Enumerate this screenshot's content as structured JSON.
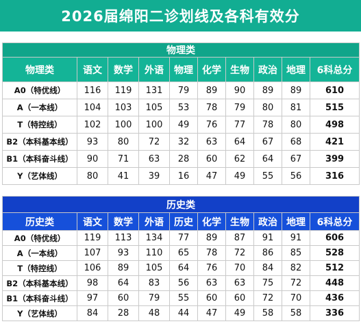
{
  "title": "2026届绵阳二诊划线及各科有效分",
  "physics": {
    "section": "物理类",
    "headers": [
      "物理类",
      "语文",
      "数学",
      "外语",
      "物理",
      "化学",
      "生物",
      "政治",
      "地理",
      "6科总分"
    ],
    "rows": [
      {
        "label": "A0（特优线）",
        "values": [
          "116",
          "119",
          "131",
          "79",
          "89",
          "90",
          "89",
          "89"
        ],
        "total": "610"
      },
      {
        "label": "A（一本线）",
        "values": [
          "104",
          "103",
          "105",
          "53",
          "78",
          "79",
          "80",
          "81"
        ],
        "total": "515"
      },
      {
        "label": "T（特控线）",
        "values": [
          "102",
          "100",
          "100",
          "49",
          "76",
          "77",
          "78",
          "80"
        ],
        "total": "498"
      },
      {
        "label": "B2（本科基本线）",
        "values": [
          "93",
          "80",
          "72",
          "32",
          "63",
          "64",
          "67",
          "68"
        ],
        "total": "421"
      },
      {
        "label": "B1（本科奋斗线）",
        "values": [
          "90",
          "71",
          "63",
          "28",
          "60",
          "62",
          "64",
          "67"
        ],
        "total": "399"
      },
      {
        "label": "Y（艺体线）",
        "values": [
          "80",
          "41",
          "39",
          "16",
          "47",
          "49",
          "55",
          "56"
        ],
        "total": "316"
      }
    ]
  },
  "history": {
    "section": "历史类",
    "headers": [
      "历史类",
      "语文",
      "数学",
      "外语",
      "历史",
      "化学",
      "生物",
      "政治",
      "地理",
      "6科总分"
    ],
    "rows": [
      {
        "label": "A0（特优线）",
        "values": [
          "119",
          "113",
          "134",
          "77",
          "89",
          "87",
          "91",
          "91"
        ],
        "total": "606"
      },
      {
        "label": "A（一本线）",
        "values": [
          "107",
          "93",
          "110",
          "65",
          "78",
          "72",
          "86",
          "85"
        ],
        "total": "528"
      },
      {
        "label": "T（特控线）",
        "values": [
          "106",
          "89",
          "105",
          "64",
          "76",
          "70",
          "84",
          "82"
        ],
        "total": "512"
      },
      {
        "label": "B2（本科基本线）",
        "values": [
          "98",
          "64",
          "83",
          "56",
          "63",
          "63",
          "75",
          "72"
        ],
        "total": "448"
      },
      {
        "label": "B1（本科奋斗线）",
        "values": [
          "97",
          "60",
          "79",
          "55",
          "60",
          "60",
          "72",
          "70"
        ],
        "total": "436"
      },
      {
        "label": "Y（艺体线）",
        "values": [
          "84",
          "28",
          "48",
          "44",
          "47",
          "49",
          "58",
          "58"
        ],
        "total": "336"
      }
    ]
  }
}
